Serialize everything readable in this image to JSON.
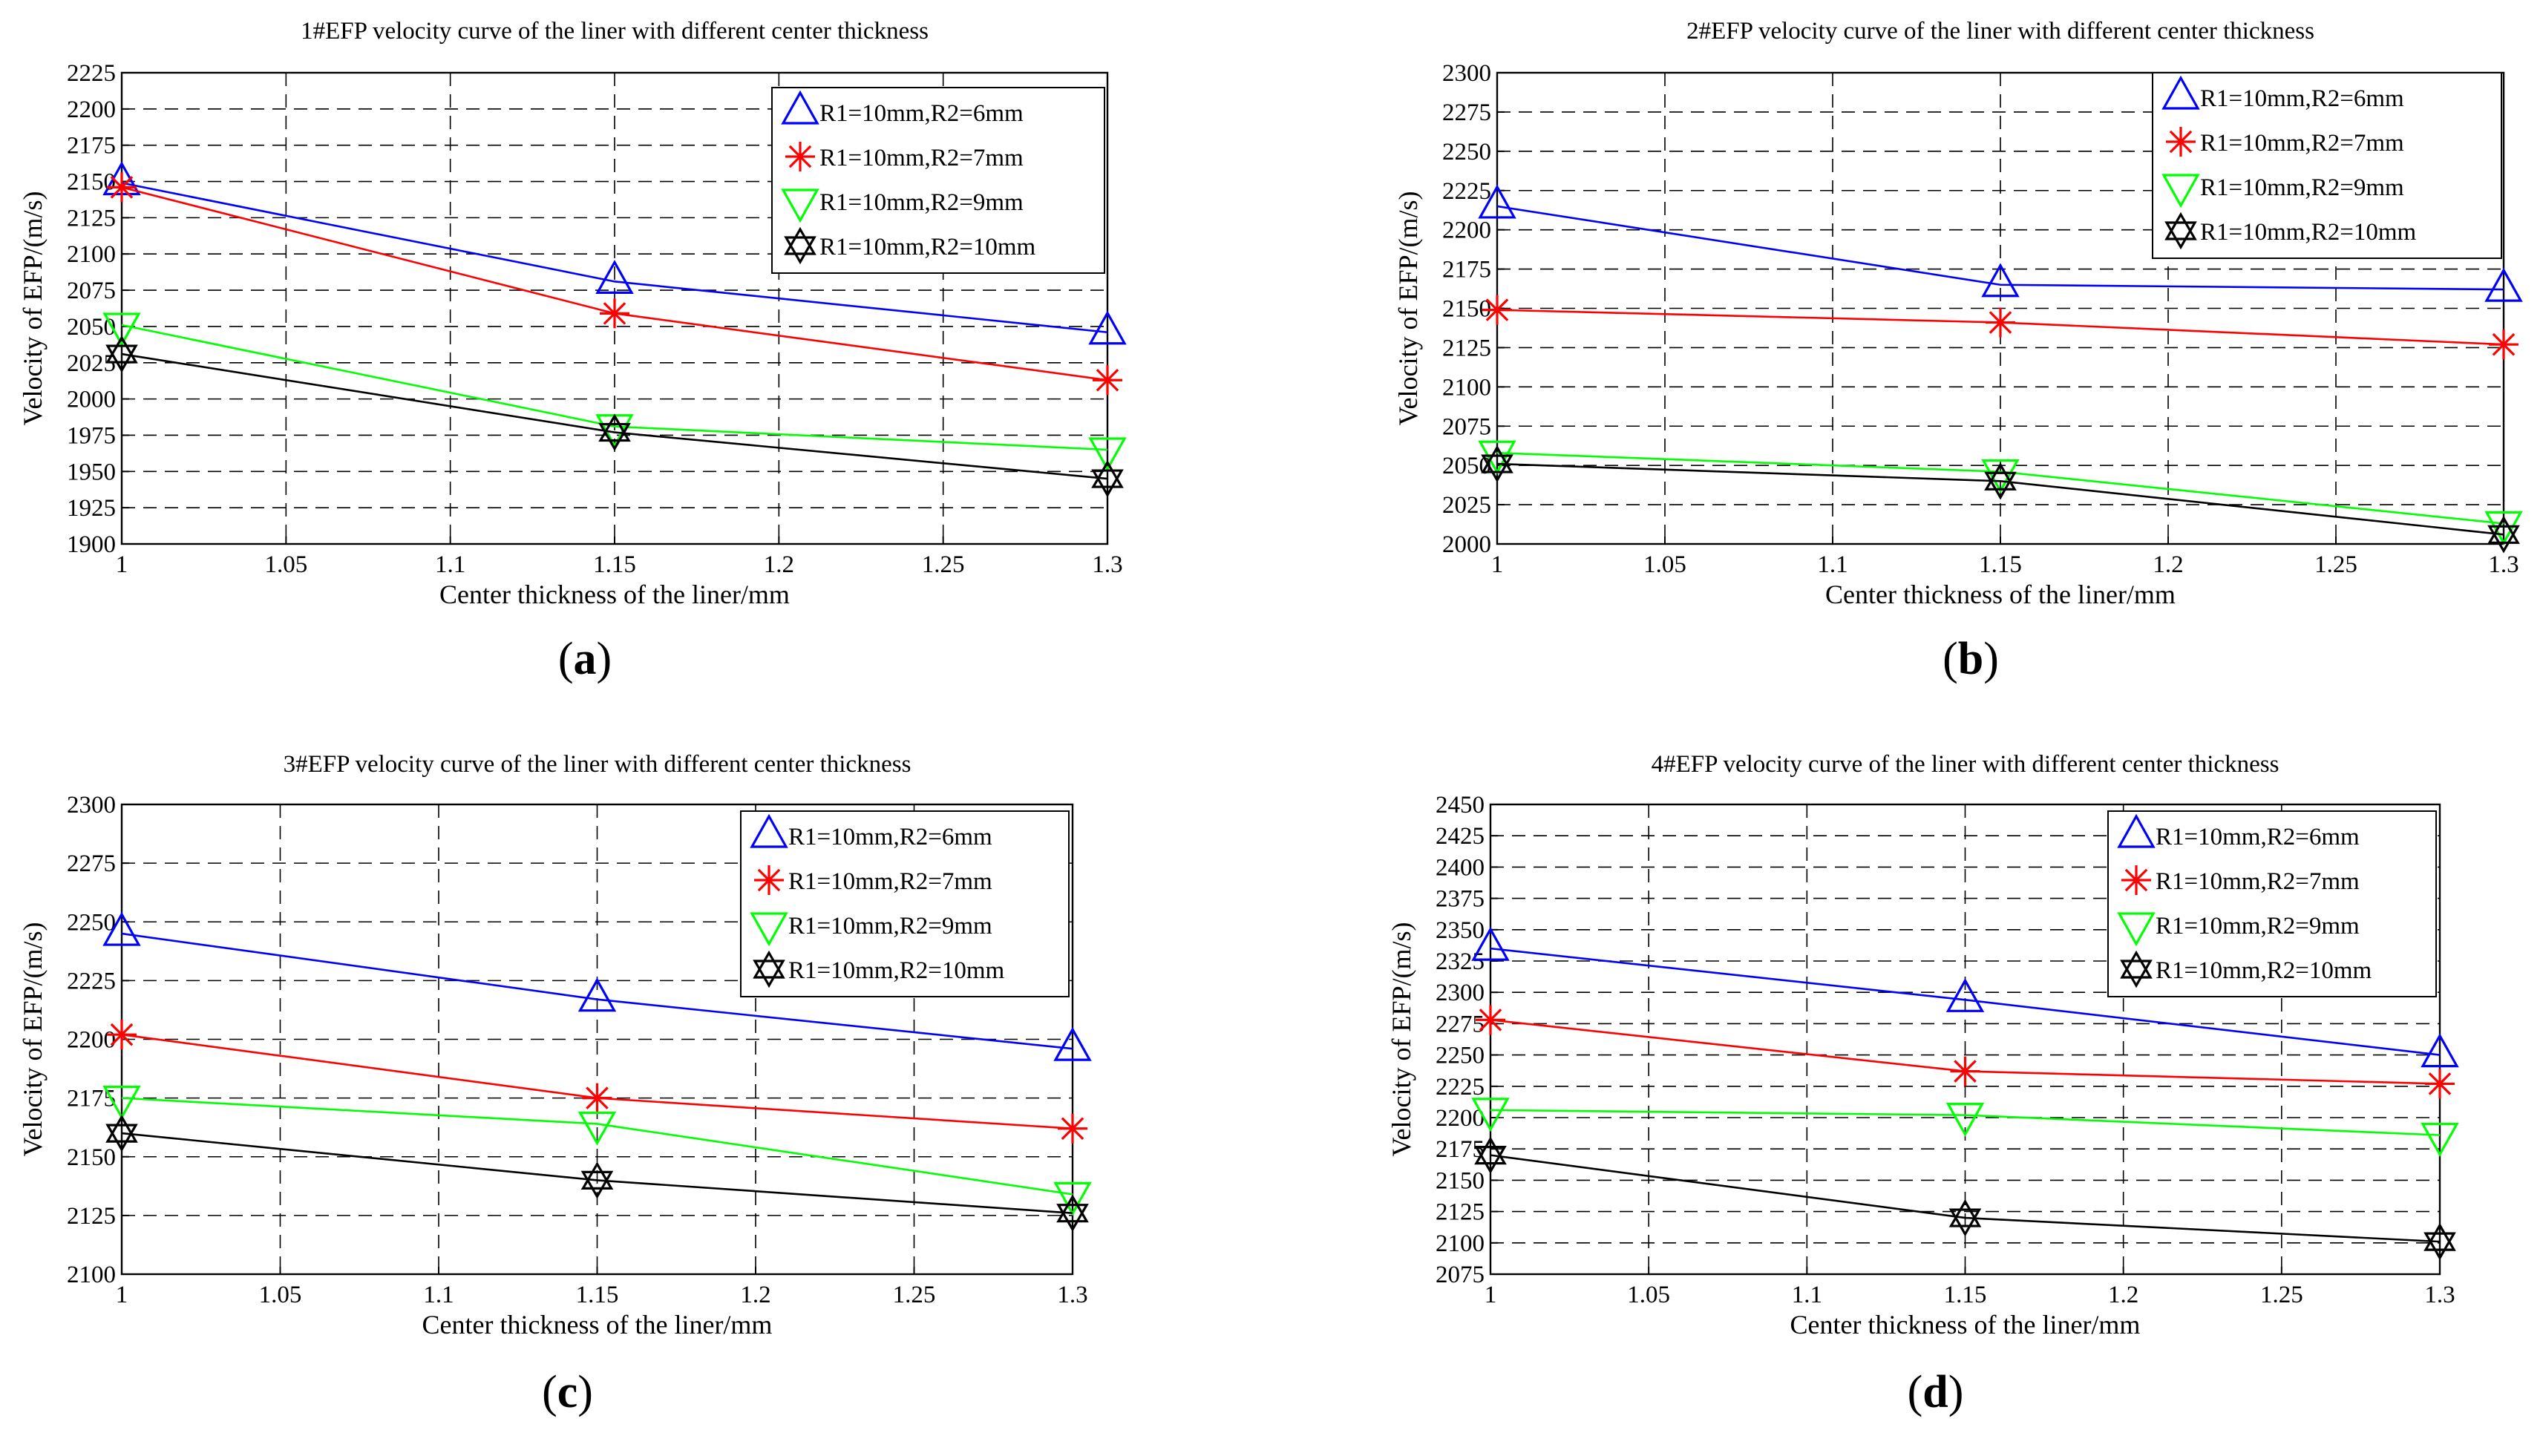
{
  "colors": {
    "series": [
      "#0000ff",
      "#ff0000",
      "#00ff00",
      "#000000"
    ]
  },
  "panel_labels": [
    "a",
    "b",
    "c",
    "d"
  ],
  "chart_data": [
    {
      "type": "line",
      "title": "1#EFP velocity curve of the liner with different center thickness",
      "xlabel": "Center thickness of the liner/mm",
      "ylabel": "Velocity of EFP/(m/s)",
      "xlim": [
        1,
        1.3
      ],
      "ylim": [
        1900,
        2225
      ],
      "xticks": [
        "1",
        "1.05",
        "1.1",
        "1.15",
        "1.2",
        "1.25",
        "1.3"
      ],
      "yticks": [
        "1900",
        "1925",
        "1950",
        "1975",
        "2000",
        "2025",
        "2050",
        "2075",
        "2100",
        "2125",
        "2150",
        "2175",
        "2200",
        "2225"
      ],
      "grid": true,
      "legend_position": "top-right",
      "x": [
        1,
        1.15,
        1.3
      ],
      "series": [
        {
          "name": "R1=10mm,R2=6mm",
          "marker": "triangle-up",
          "values": [
            2149,
            2081,
            2046
          ]
        },
        {
          "name": "R1=10mm,R2=7mm",
          "marker": "asterisk",
          "values": [
            2146,
            2059,
            2013
          ]
        },
        {
          "name": "R1=10mm,R2=9mm",
          "marker": "triangle-down",
          "values": [
            2051,
            1981,
            1965
          ]
        },
        {
          "name": "R1=10mm,R2=10mm",
          "marker": "hexagram",
          "values": [
            2031,
            1977,
            1945
          ]
        }
      ]
    },
    {
      "type": "line",
      "title": "2#EFP velocity curve of the liner with different center thickness",
      "xlabel": "Center thickness of the liner/mm",
      "ylabel": "Velocity of EFP/(m/s)",
      "xlim": [
        1,
        1.3
      ],
      "ylim": [
        2000,
        2300
      ],
      "xticks": [
        "1",
        "1.05",
        "1.1",
        "1.15",
        "1.2",
        "1.25",
        "1.3"
      ],
      "yticks": [
        "2000",
        "2025",
        "2050",
        "2075",
        "2100",
        "2125",
        "2150",
        "2175",
        "2200",
        "2225",
        "2250",
        "2275",
        "2300"
      ],
      "grid": true,
      "legend_position": "top-right",
      "x": [
        1,
        1.15,
        1.3
      ],
      "series": [
        {
          "name": "R1=10mm,R2=6mm",
          "marker": "triangle-up",
          "values": [
            2215,
            2165,
            2162
          ]
        },
        {
          "name": "R1=10mm,R2=7mm",
          "marker": "asterisk",
          "values": [
            2149,
            2141,
            2127
          ]
        },
        {
          "name": "R1=10mm,R2=9mm",
          "marker": "triangle-down",
          "values": [
            2058,
            2046,
            2013
          ]
        },
        {
          "name": "R1=10mm,R2=10mm",
          "marker": "hexagram",
          "values": [
            2051,
            2040,
            2006
          ]
        }
      ]
    },
    {
      "type": "line",
      "title": "3#EFP velocity curve of the liner with different center thickness",
      "xlabel": "Center thickness of the liner/mm",
      "ylabel": "Velocity of EFP/(m/s)",
      "xlim": [
        1,
        1.3
      ],
      "ylim": [
        2100,
        2300
      ],
      "xticks": [
        "1",
        "1.05",
        "1.1",
        "1.15",
        "1.2",
        "1.25",
        "1.3"
      ],
      "yticks": [
        "2100",
        "2125",
        "2150",
        "2175",
        "2200",
        "2225",
        "2250",
        "2275",
        "2300"
      ],
      "grid": true,
      "legend_position": "top-right",
      "x": [
        1,
        1.15,
        1.3
      ],
      "series": [
        {
          "name": "R1=10mm,R2=6mm",
          "marker": "triangle-up",
          "values": [
            2245,
            2217,
            2196
          ]
        },
        {
          "name": "R1=10mm,R2=7mm",
          "marker": "asterisk",
          "values": [
            2202,
            2175,
            2162
          ]
        },
        {
          "name": "R1=10mm,R2=9mm",
          "marker": "triangle-down",
          "values": [
            2175,
            2164,
            2134
          ]
        },
        {
          "name": "R1=10mm,R2=10mm",
          "marker": "hexagram",
          "values": [
            2160,
            2140,
            2126
          ]
        }
      ]
    },
    {
      "type": "line",
      "title": "4#EFP velocity curve of the liner with different center thickness",
      "xlabel": "Center thickness of the liner/mm",
      "ylabel": "Velocity of EFP/(m/s)",
      "xlim": [
        1,
        1.3
      ],
      "ylim": [
        2075,
        2450
      ],
      "xticks": [
        "1",
        "1.05",
        "1.1",
        "1.15",
        "1.2",
        "1.25",
        "1.3"
      ],
      "yticks": [
        "2075",
        "2100",
        "2125",
        "2150",
        "2175",
        "2200",
        "2225",
        "2250",
        "2275",
        "2300",
        "2325",
        "2350",
        "2375",
        "2400",
        "2425",
        "2450"
      ],
      "grid": true,
      "legend_position": "top-right",
      "x": [
        1,
        1.15,
        1.3
      ],
      "series": [
        {
          "name": "R1=10mm,R2=6mm",
          "marker": "triangle-up",
          "values": [
            2335,
            2294,
            2250
          ]
        },
        {
          "name": "R1=10mm,R2=7mm",
          "marker": "asterisk",
          "values": [
            2278,
            2237,
            2227
          ]
        },
        {
          "name": "R1=10mm,R2=9mm",
          "marker": "triangle-down",
          "values": [
            2206,
            2202,
            2186
          ]
        },
        {
          "name": "R1=10mm,R2=10mm",
          "marker": "hexagram",
          "values": [
            2170,
            2120,
            2101
          ]
        }
      ]
    }
  ]
}
